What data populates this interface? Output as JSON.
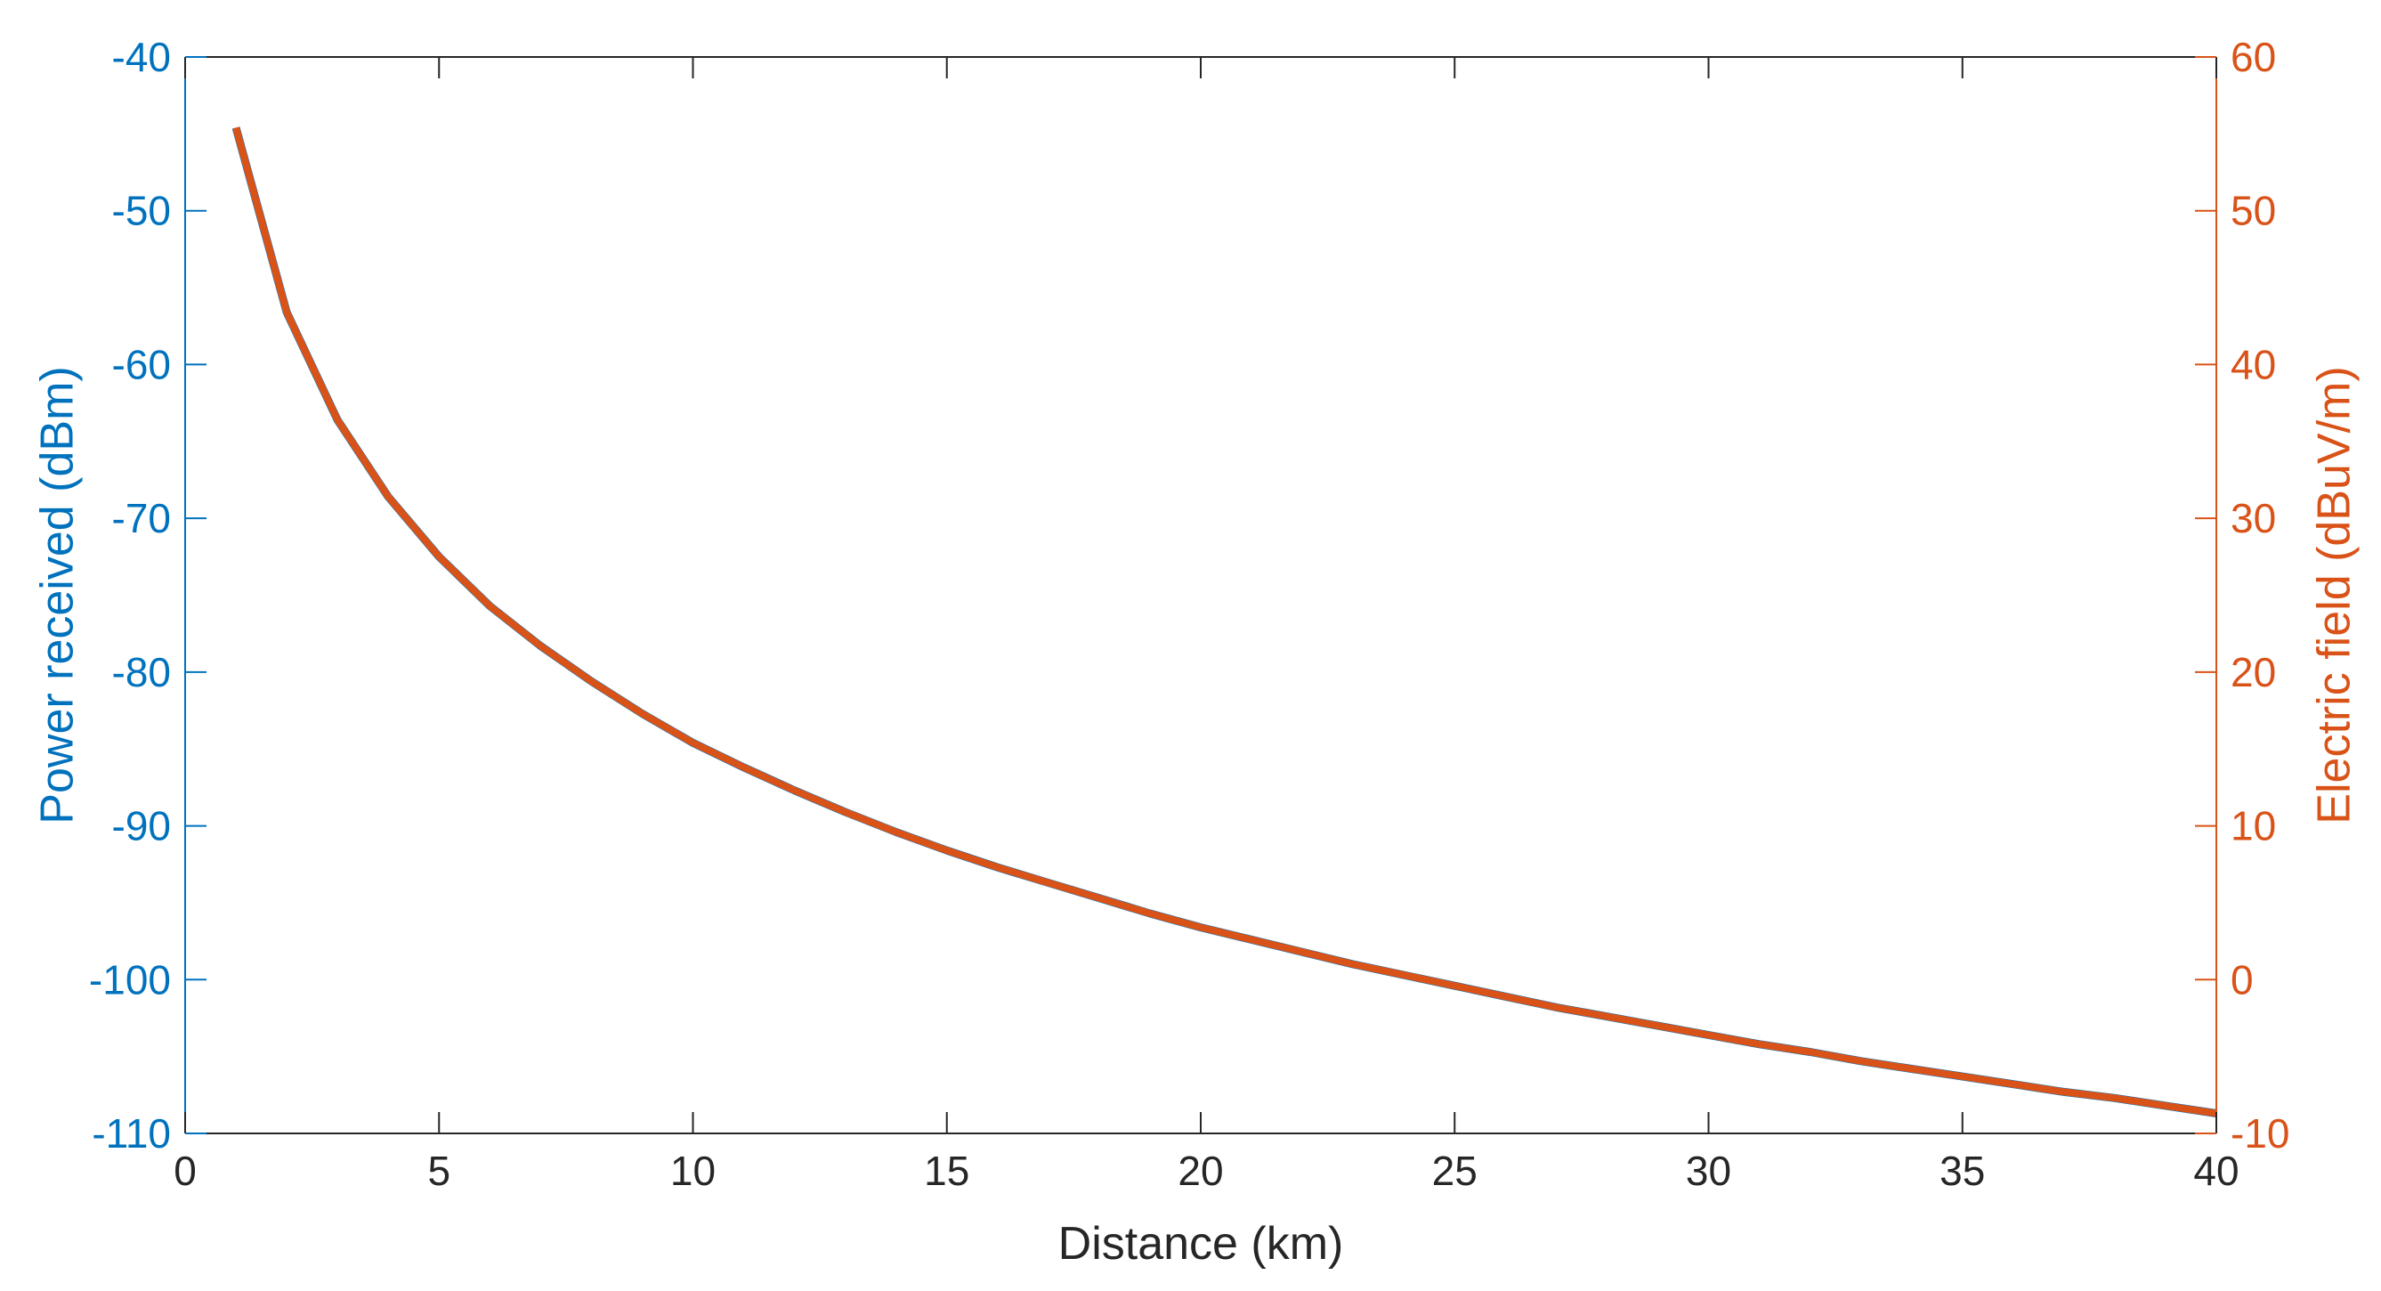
{
  "chart_data": {
    "type": "line",
    "title": "",
    "xlabel": "Distance (km)",
    "ylabel_left": "Power received (dBm)",
    "ylabel_right": "Electric field (dBuV/m)",
    "xlim": [
      0,
      40
    ],
    "ylim_left": [
      -110,
      -40
    ],
    "ylim_right": [
      -10,
      60
    ],
    "x_ticks": [
      0,
      5,
      10,
      15,
      20,
      25,
      30,
      35,
      40
    ],
    "y_left_ticks": [
      -40,
      -50,
      -60,
      -70,
      -80,
      -90,
      -100,
      -110
    ],
    "y_right_ticks": [
      60,
      50,
      40,
      30,
      20,
      10,
      0,
      -10
    ],
    "grid": false,
    "colors": {
      "left_axis": "#0072BD",
      "right_axis": "#D95319",
      "box": "#262626"
    },
    "x": [
      1,
      2,
      3,
      4,
      5,
      6,
      7,
      8,
      9,
      10,
      11,
      12,
      13,
      14,
      15,
      16,
      17,
      18,
      19,
      20,
      21,
      22,
      23,
      24,
      25,
      26,
      27,
      28,
      29,
      30,
      31,
      32,
      33,
      34,
      35,
      36,
      37,
      38,
      39,
      40
    ],
    "series": [
      {
        "axis": "left",
        "color": "#0072BD",
        "values": [
          -44.6,
          -56.6,
          -63.6,
          -68.6,
          -72.5,
          -75.7,
          -78.3,
          -80.6,
          -82.7,
          -84.6,
          -86.2,
          -87.7,
          -89.1,
          -90.4,
          -91.6,
          -92.7,
          -93.7,
          -94.7,
          -95.7,
          -96.6,
          -97.4,
          -98.2,
          -99.0,
          -99.7,
          -100.4,
          -101.1,
          -101.8,
          -102.4,
          -103.0,
          -103.6,
          -104.2,
          -104.7,
          -105.3,
          -105.8,
          -106.3,
          -106.8,
          -107.3,
          -107.7,
          -108.2,
          -108.7
        ]
      },
      {
        "axis": "right",
        "color": "#D95319",
        "values": [
          55.4,
          43.4,
          36.4,
          31.4,
          27.5,
          24.3,
          21.7,
          19.4,
          17.3,
          15.4,
          13.8,
          12.3,
          10.9,
          9.6,
          8.4,
          7.3,
          6.3,
          5.3,
          4.3,
          3.4,
          2.6,
          1.8,
          1.0,
          0.3,
          -0.4,
          -1.1,
          -1.8,
          -2.4,
          -3.0,
          -3.6,
          -4.2,
          -4.7,
          -5.3,
          -5.8,
          -6.3,
          -6.8,
          -7.3,
          -7.7,
          -8.2,
          -8.7
        ]
      }
    ]
  }
}
